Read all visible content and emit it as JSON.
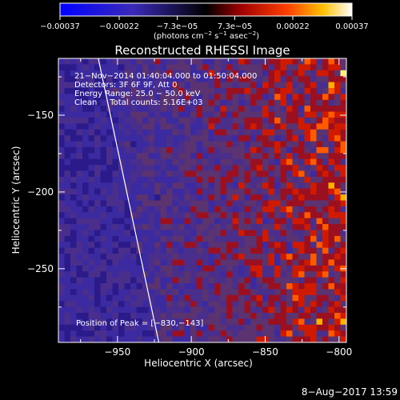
{
  "chart_data": {
    "type": "heatmap",
    "title": "Reconstructed RHESSI Image",
    "xlabel": "Heliocentric X (arcsec)",
    "ylabel": "Heliocentric Y (arcsec)",
    "xlim": [
      -990,
      -795
    ],
    "ylim": [
      -298,
      -113
    ],
    "x_ticks": [
      -950,
      -900,
      -850,
      -800
    ],
    "y_ticks": [
      -250,
      -200,
      -150
    ],
    "x_tick_labels": [
      "−950",
      "−900",
      "−850",
      "−800"
    ],
    "y_tick_labels": [
      "−250",
      "−200",
      "−150"
    ],
    "colorbar": {
      "range": [
        -0.00037,
        0.00037
      ],
      "ticks": [
        -0.00037,
        -0.00022,
        -7.3e-05,
        7.3e-05,
        0.00022,
        0.00037
      ],
      "tick_labels": [
        "−0.00037",
        "−0.00022",
        "−7.3e−05",
        "7.3e−05",
        "0.00022",
        "0.00037"
      ],
      "unit_label": "(photons cm",
      "unit_exp1": "−2",
      "unit_mid": " s",
      "unit_exp2": "−1",
      "unit_mid2": " asec",
      "unit_exp3": "−2",
      "unit_end": ")"
    },
    "annotations": [
      "21−Nov−2014 01:40:04.000 to 01:50:04.000",
      "Detectors: 3F 6F 9F, Att 0",
      "Energy Range: 25.0 − 50.0 keV",
      "Clean     Total counts: 5.16E+03"
    ],
    "peak_label": "Position of Peak = [−830,−143]",
    "peak": [
      -830,
      -143
    ],
    "limb_line": {
      "x": [
        -963,
        -922
      ],
      "y": [
        -113,
        -298
      ]
    }
  },
  "footer": {
    "date": "8−Aug−2017 13:59"
  },
  "colors": {
    "background": "#000000",
    "foreground": "#ffffff"
  }
}
